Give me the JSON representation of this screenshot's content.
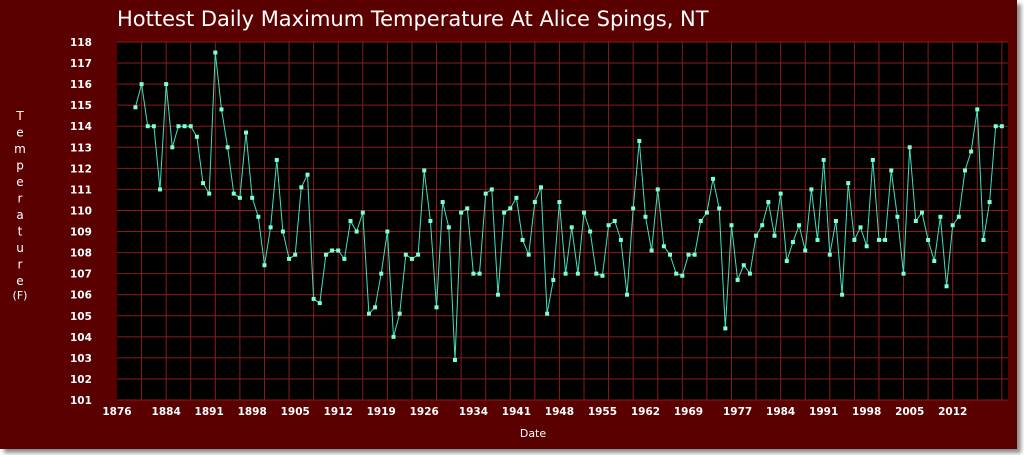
{
  "chart_data": {
    "type": "line",
    "title": "Hottest Daily Maximum Temperature At Alice Spings, NT",
    "xlabel": "Date",
    "ylabel": "Temperature",
    "ylabel_unit": "(F)",
    "xlim": [
      1876,
      2021
    ],
    "ylim": [
      101,
      118
    ],
    "x_ticks": [
      1876,
      1884,
      1891,
      1898,
      1905,
      1912,
      1919,
      1926,
      1934,
      1941,
      1948,
      1955,
      1962,
      1969,
      1977,
      1984,
      1991,
      1998,
      2005,
      2012
    ],
    "y_ticks": [
      101,
      102,
      103,
      104,
      105,
      106,
      107,
      108,
      109,
      110,
      111,
      112,
      113,
      114,
      115,
      116,
      117,
      118
    ],
    "grid": true,
    "colors": {
      "background": "#5a0000",
      "plot_background": "#000000",
      "grid": "#8b1a1a",
      "line": "#40e0c0",
      "marker": "#7fffd4"
    },
    "series": [
      {
        "x": [
          1879,
          1880,
          1881,
          1882,
          1883,
          1884,
          1885,
          1886,
          1887,
          1888,
          1889,
          1890,
          1891,
          1892,
          1893,
          1894,
          1895,
          1896,
          1897,
          1898,
          1899,
          1900,
          1901,
          1902,
          1903,
          1904,
          1905,
          1906,
          1907,
          1908,
          1909,
          1910,
          1911,
          1912,
          1913,
          1914,
          1915,
          1916,
          1917,
          1918,
          1919,
          1920,
          1921,
          1922,
          1923,
          1924,
          1925,
          1926,
          1927,
          1928,
          1929,
          1930,
          1931,
          1932,
          1933,
          1934,
          1935,
          1936,
          1937,
          1938,
          1939,
          1940,
          1941,
          1942,
          1943,
          1944,
          1945,
          1946,
          1947,
          1948,
          1949,
          1950,
          1951,
          1952,
          1953,
          1954,
          1955,
          1956,
          1957,
          1958,
          1959,
          1960,
          1961,
          1962,
          1963,
          1964,
          1965,
          1966,
          1967,
          1968,
          1969,
          1970,
          1971,
          1972,
          1973,
          1974,
          1975,
          1976,
          1977,
          1978,
          1979,
          1980,
          1981,
          1982,
          1983,
          1984,
          1985,
          1986,
          1987,
          1988,
          1989,
          1990,
          1991,
          1992,
          1993,
          1994,
          1995,
          1996,
          1997,
          1998,
          1999,
          2000,
          2001,
          2002,
          2003,
          2004,
          2005,
          2006,
          2007,
          2008,
          2009,
          2010,
          2011,
          2012,
          2013,
          2014,
          2015,
          2016,
          2017,
          2018,
          2019,
          2020
        ],
        "y": [
          114.9,
          116.0,
          114.0,
          114.0,
          111.0,
          116.0,
          113.0,
          114.0,
          114.0,
          114.0,
          113.5,
          111.3,
          110.8,
          117.5,
          114.8,
          113.0,
          110.8,
          110.6,
          113.7,
          110.6,
          109.7,
          107.4,
          109.2,
          112.4,
          109.0,
          107.7,
          107.9,
          111.1,
          111.7,
          105.8,
          105.6,
          107.9,
          108.1,
          108.1,
          107.7,
          109.5,
          109.0,
          109.9,
          105.1,
          105.4,
          107.0,
          109.0,
          104.0,
          105.1,
          107.9,
          107.7,
          107.9,
          111.9,
          109.5,
          105.4,
          110.4,
          109.2,
          102.9,
          109.9,
          110.1,
          107.0,
          107.0,
          110.8,
          111.0,
          106.0,
          109.9,
          110.1,
          110.6,
          108.6,
          107.9,
          110.4,
          111.1,
          105.1,
          106.7,
          110.4,
          107.0,
          109.2,
          107.0,
          109.9,
          109.0,
          107.0,
          106.9,
          109.3,
          109.5,
          108.6,
          106.0,
          110.1,
          113.3,
          109.7,
          108.1,
          111.0,
          108.3,
          107.9,
          107.0,
          106.9,
          107.9,
          107.9,
          109.5,
          109.9,
          111.5,
          110.1,
          104.4,
          109.3,
          106.7,
          107.4,
          107.0,
          108.8,
          109.3,
          110.4,
          108.8,
          110.8,
          107.6,
          108.5,
          109.3,
          108.1,
          111.0,
          108.6,
          112.4,
          107.9,
          109.5,
          106.0,
          111.3,
          108.6,
          109.2,
          108.3,
          112.4,
          108.6,
          108.6,
          111.9,
          109.7,
          107.0,
          113.0,
          109.5,
          109.9,
          108.6,
          107.6,
          109.7,
          106.4,
          109.3,
          109.7,
          111.9,
          112.8,
          114.8,
          108.6,
          110.4,
          114.0,
          114.0
        ]
      }
    ]
  }
}
